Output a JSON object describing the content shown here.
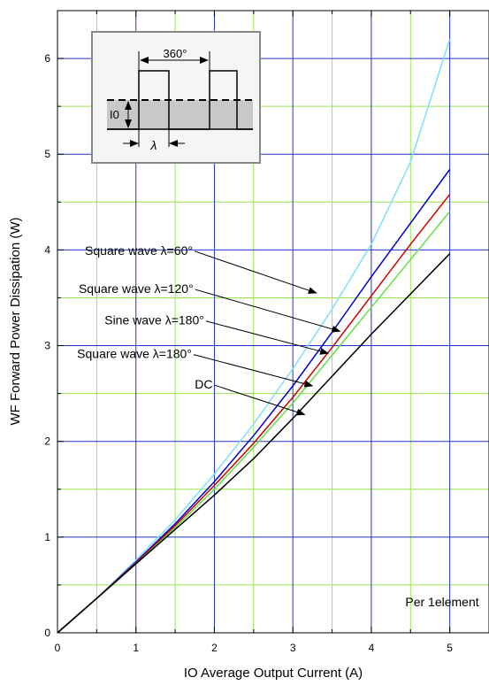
{
  "chart_data": {
    "type": "line",
    "xlabel": "IO    Average Output Current    (A)",
    "ylabel": "WF    Forward Power Dissipation    (W)",
    "xlim": [
      0,
      5.5
    ],
    "ylim": [
      0,
      6.5
    ],
    "xticks": [
      0,
      1,
      2,
      3,
      4,
      5
    ],
    "yticks": [
      0,
      1,
      2,
      3,
      4,
      5,
      6
    ],
    "grid": true,
    "series": [
      {
        "name": "Square wave λ=60°",
        "color": "#7fdfff",
        "x": [
          0,
          0.5,
          1,
          1.5,
          2,
          2.5,
          3,
          3.5,
          4,
          4.5,
          5
        ],
        "y": [
          0,
          0.36,
          0.76,
          1.18,
          1.66,
          2.18,
          2.76,
          3.38,
          4.06,
          4.92,
          6.2
        ]
      },
      {
        "name": "Square wave λ=120°",
        "color": "#0000cc",
        "x": [
          0,
          0.5,
          1,
          1.5,
          2,
          2.5,
          3,
          3.5,
          4,
          4.5,
          5
        ],
        "y": [
          0,
          0.36,
          0.74,
          1.14,
          1.58,
          2.06,
          2.58,
          3.14,
          3.72,
          4.28,
          4.84
        ]
      },
      {
        "name": "Sine wave λ=180°",
        "color": "#cc0000",
        "x": [
          0,
          0.5,
          1,
          1.5,
          2,
          2.5,
          3,
          3.5,
          4,
          4.5,
          5
        ],
        "y": [
          0,
          0.36,
          0.73,
          1.12,
          1.54,
          1.98,
          2.46,
          2.98,
          3.52,
          4.06,
          4.58
        ]
      },
      {
        "name": "Square wave λ=180°",
        "color": "#66dd44",
        "x": [
          0,
          0.5,
          1,
          1.5,
          2,
          2.5,
          3,
          3.5,
          4,
          4.5,
          5
        ],
        "y": [
          0,
          0.36,
          0.72,
          1.1,
          1.5,
          1.94,
          2.4,
          2.9,
          3.4,
          3.9,
          4.4
        ]
      },
      {
        "name": "DC",
        "color": "#000000",
        "x": [
          0,
          0.5,
          1,
          1.5,
          2,
          2.5,
          3,
          3.5,
          4,
          4.5,
          5
        ],
        "y": [
          0,
          0.36,
          0.72,
          1.08,
          1.44,
          1.82,
          2.24,
          2.68,
          3.12,
          3.54,
          3.96
        ]
      }
    ],
    "annotations": [
      {
        "text": "Square wave λ=60°",
        "label_x": 0.35,
        "label_y": 3.95,
        "arrow_to": [
          3.3,
          3.55
        ]
      },
      {
        "text": "Square wave λ=120°",
        "label_x": 0.27,
        "label_y": 3.55,
        "arrow_to": [
          3.6,
          3.15
        ]
      },
      {
        "text": "Sine wave λ=180°",
        "label_x": 0.6,
        "label_y": 3.22,
        "arrow_to": [
          3.45,
          2.92
        ]
      },
      {
        "text": "Square wave λ=180°",
        "label_x": 0.25,
        "label_y": 2.87,
        "arrow_to": [
          3.25,
          2.58
        ]
      },
      {
        "text": "DC",
        "label_x": 1.75,
        "label_y": 2.55,
        "arrow_to": [
          3.15,
          2.28
        ]
      }
    ],
    "note": "Per 1element",
    "inset": {
      "period_label": "360°",
      "level_label": "I0",
      "width_label": "λ"
    }
  }
}
